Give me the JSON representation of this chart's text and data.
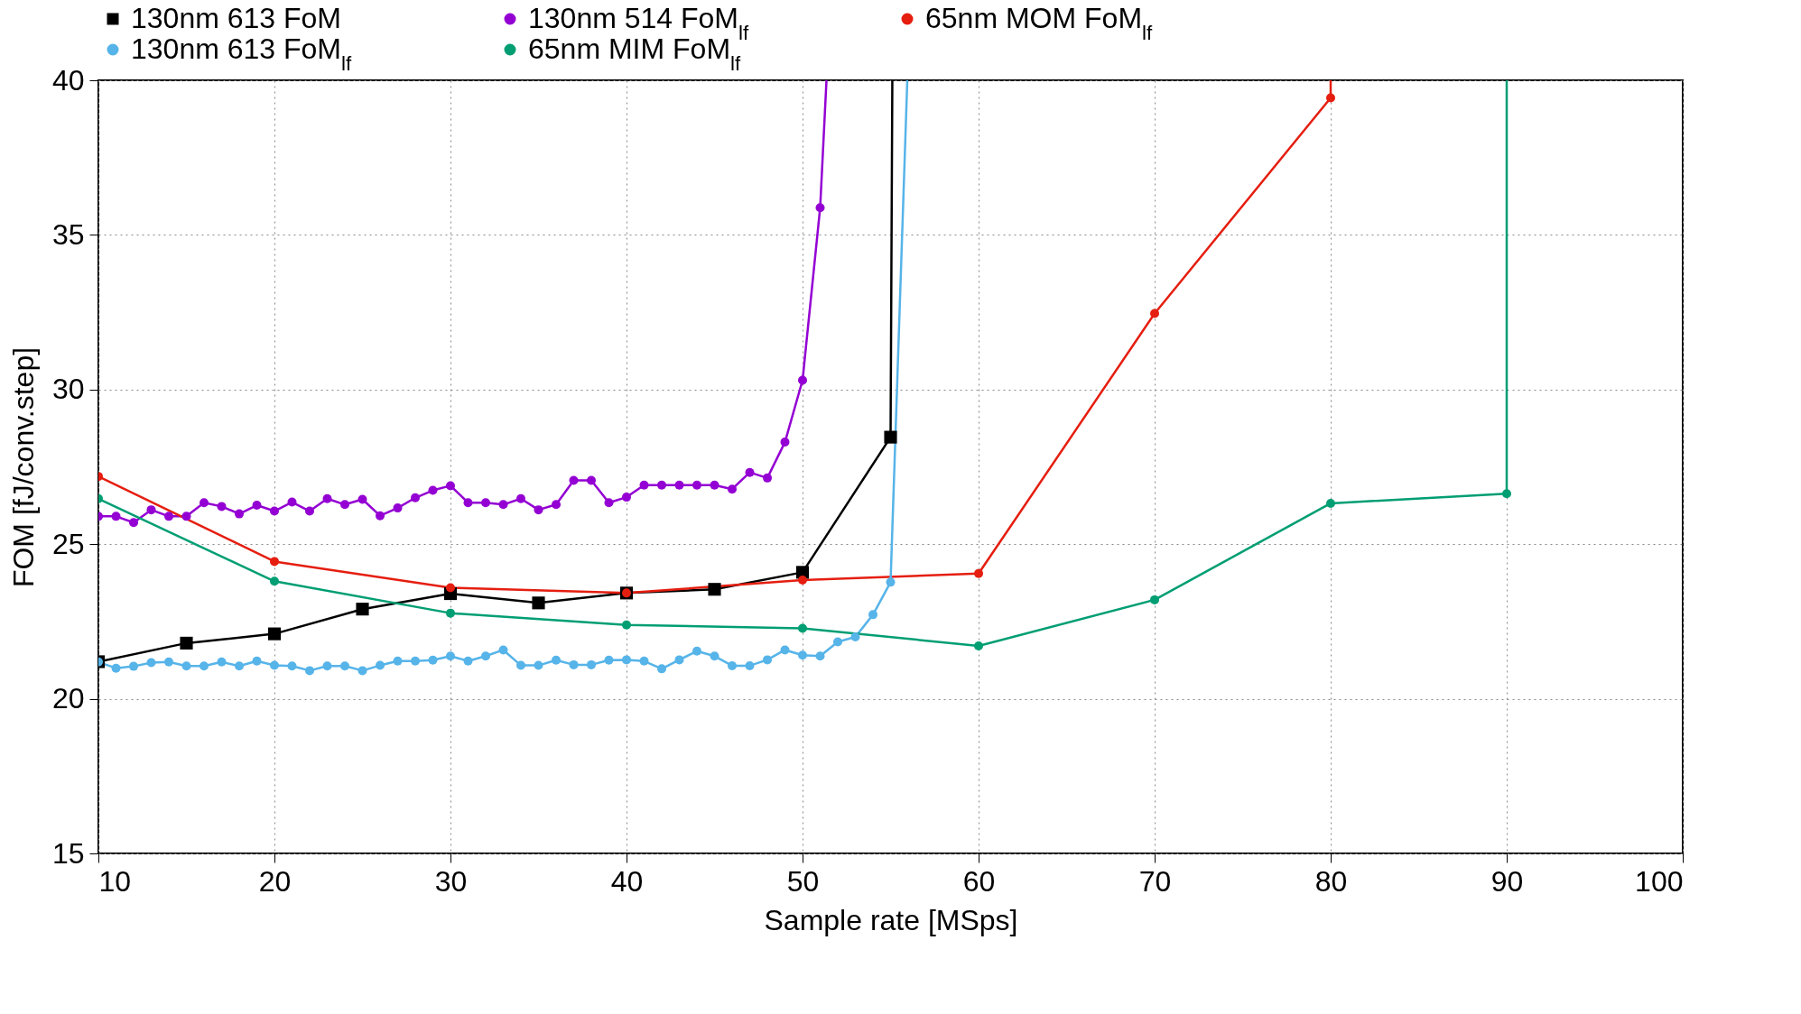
{
  "chart_data": {
    "type": "line",
    "xlabel": "Sample rate [MSps]",
    "ylabel": "FOM [fJ/conv.step]",
    "xlim": [
      10,
      100
    ],
    "ylim": [
      15,
      40
    ],
    "xticks": [
      10,
      20,
      30,
      40,
      50,
      60,
      70,
      80,
      90,
      100
    ],
    "yticks": [
      15,
      20,
      25,
      30,
      35,
      40
    ],
    "grid": true,
    "legend": "top",
    "marker": "circle",
    "line_style": "solid",
    "series": [
      {
        "name": "130nm 613 FoM",
        "color": "#000000",
        "marker": "square",
        "x": [
          10,
          15,
          20,
          25,
          30,
          35,
          40,
          45,
          50,
          55,
          55.1
        ],
        "values": [
          21.2,
          21.8,
          22.1,
          22.9,
          23.4,
          23.1,
          23.42,
          23.54,
          24.09,
          28.46,
          40
        ]
      },
      {
        "name": "130nm 514 FoM$_{lf}$",
        "color": "#9400d3",
        "x": [
          10,
          11,
          12,
          13,
          14,
          15,
          16,
          17,
          18,
          19,
          20,
          21,
          22,
          23,
          24,
          25,
          26,
          27,
          28,
          29,
          30,
          31,
          32,
          33,
          34,
          35,
          36,
          37,
          38,
          39,
          40,
          41,
          42,
          43,
          44,
          45,
          46,
          47,
          48,
          49,
          50,
          51,
          51.36
        ],
        "values": [
          25.9,
          25.9,
          25.7,
          26.11,
          25.9,
          25.9,
          26.34,
          26.22,
          25.98,
          26.26,
          26.07,
          26.36,
          26.07,
          26.47,
          26.28,
          26.45,
          25.92,
          26.17,
          26.5,
          26.74,
          26.89,
          26.34,
          26.34,
          26.28,
          26.47,
          26.11,
          26.28,
          27.06,
          27.06,
          26.34,
          26.52,
          26.91,
          26.91,
          26.91,
          26.91,
          26.91,
          26.78,
          27.32,
          27.14,
          28.3,
          30.3,
          35.88,
          40
        ]
      },
      {
        "name": "65nm MOM FoM$_{lf}$",
        "color": "#e51e10",
        "x": [
          10,
          20,
          30,
          40,
          50,
          60,
          70,
          80,
          80
        ],
        "values": [
          27.19,
          24.44,
          23.59,
          23.42,
          23.84,
          24.05,
          32.46,
          39.43,
          40
        ]
      },
      {
        "name": "130nm 613 FoM$_{lf}$",
        "color": "#56b4e9",
        "x": [
          10,
          11,
          12,
          13,
          14,
          15,
          16,
          17,
          18,
          19,
          20,
          21,
          22,
          23,
          24,
          25,
          26,
          27,
          28,
          29,
          30,
          31,
          32,
          33,
          34,
          35,
          36,
          37,
          38,
          39,
          40,
          41,
          42,
          43,
          44,
          45,
          46,
          47,
          48,
          49,
          50,
          51,
          52,
          53,
          54,
          55,
          55.95
        ],
        "values": [
          21.19,
          20.99,
          21.05,
          21.17,
          21.19,
          21.06,
          21.06,
          21.19,
          21.06,
          21.22,
          21.08,
          21.06,
          20.91,
          21.06,
          21.06,
          20.91,
          21.08,
          21.22,
          21.22,
          21.25,
          21.38,
          21.22,
          21.38,
          21.58,
          21.08,
          21.08,
          21.25,
          21.1,
          21.1,
          21.25,
          21.26,
          21.22,
          20.97,
          21.26,
          21.54,
          21.38,
          21.07,
          21.07,
          21.26,
          21.58,
          21.41,
          21.38,
          21.84,
          22.0,
          22.72,
          23.77,
          40
        ]
      },
      {
        "name": "65nm MIM FoM$_{lf}$",
        "color": "#009e73",
        "x": [
          10,
          20,
          30,
          40,
          50,
          60,
          70,
          80,
          90,
          90
        ],
        "values": [
          26.47,
          23.8,
          22.77,
          22.39,
          22.28,
          21.71,
          23.2,
          26.32,
          26.63,
          40
        ]
      }
    ]
  }
}
